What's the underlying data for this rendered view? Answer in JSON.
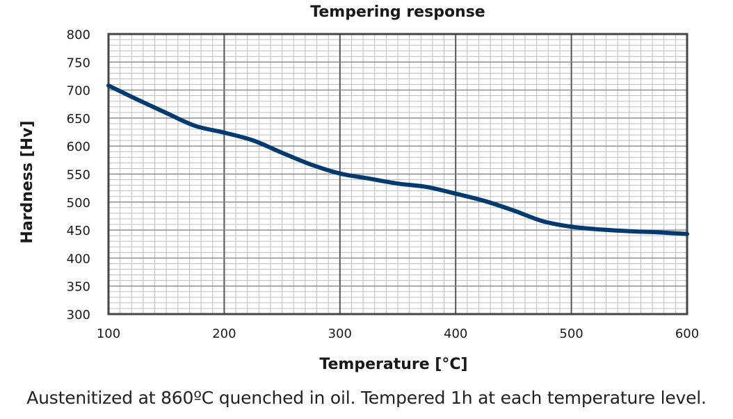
{
  "chart_data": {
    "type": "line",
    "title": "Tempering response",
    "xlabel": "Temperature [°C]",
    "ylabel": "Hardness [Hv]",
    "xlim": [
      100,
      600
    ],
    "ylim": [
      300,
      800
    ],
    "x_ticks": [
      100,
      200,
      300,
      400,
      500,
      600
    ],
    "y_ticks": [
      300,
      350,
      400,
      450,
      500,
      550,
      600,
      650,
      700,
      750,
      800
    ],
    "grid": true,
    "legend": "none",
    "series": [
      {
        "color": "#003a70",
        "x": [
          100,
          125,
          150,
          175,
          200,
          225,
          250,
          275,
          300,
          325,
          350,
          375,
          400,
          425,
          450,
          475,
          500,
          525,
          550,
          575,
          600
        ],
        "y": [
          708,
          683,
          659,
          636,
          624,
          610,
          588,
          567,
          551,
          542,
          533,
          527,
          515,
          502,
          485,
          466,
          456,
          451,
          448,
          446,
          443
        ]
      }
    ]
  },
  "caption": "Austenitized at 860ºC quenched in oil. Tempered 1h at each temperature level."
}
